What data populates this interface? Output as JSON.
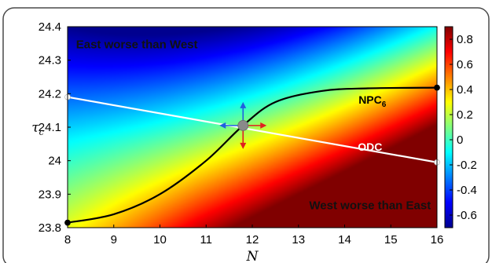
{
  "chart_data": {
    "type": "heatmap",
    "title": "",
    "xlabel": "N",
    "ylabel": "τc",
    "xlim": [
      8,
      16
    ],
    "ylim": [
      23.8,
      24.4
    ],
    "x_ticks": [
      "8",
      "9",
      "10",
      "11",
      "12",
      "13",
      "14",
      "15",
      "16"
    ],
    "y_ticks": [
      "23.8",
      "23.9",
      "24",
      "24.1",
      "24.2",
      "24.3",
      "24.4"
    ],
    "colorbar": {
      "range": [
        -0.7,
        0.9
      ],
      "ticks": [
        "0.8",
        "0.6",
        "0.4",
        "0.2",
        "0",
        "-0.2",
        "-0.4",
        "-0.6"
      ],
      "colormap": [
        "#00008f",
        "#0000ff",
        "#0080ff",
        "#00ffff",
        "#80ff80",
        "#ffff00",
        "#ff8000",
        "#ff0000",
        "#800000"
      ]
    },
    "region_labels": [
      {
        "text": "East worse than West",
        "x": 9.5,
        "y": 24.335
      },
      {
        "text": "West worse than East",
        "x": 14.55,
        "y": 23.855
      }
    ],
    "series": [
      {
        "name": "NPC",
        "subscript": "6",
        "color": "#000000",
        "label_at": {
          "x": 14.6,
          "y": 24.17
        },
        "points": [
          {
            "x": 8,
            "y": 23.815
          },
          {
            "x": 9,
            "y": 23.84
          },
          {
            "x": 10,
            "y": 23.9
          },
          {
            "x": 11,
            "y": 24.0
          },
          {
            "x": 11.8,
            "y": 24.105
          },
          {
            "x": 12.5,
            "y": 24.175
          },
          {
            "x": 13.5,
            "y": 24.208
          },
          {
            "x": 14.5,
            "y": 24.216
          },
          {
            "x": 16,
            "y": 24.218
          }
        ]
      },
      {
        "name": "ODC",
        "color": "#ffffff",
        "label_at": {
          "x": 14.55,
          "y": 24.03
        },
        "points": [
          {
            "x": 8,
            "y": 24.19
          },
          {
            "x": 16,
            "y": 23.995
          }
        ]
      }
    ],
    "intersection": {
      "x": 11.8,
      "y": 24.105
    },
    "arrows": [
      {
        "direction": "up",
        "color": "#2060e0"
      },
      {
        "direction": "left",
        "color": "#2060e0"
      },
      {
        "direction": "right",
        "color": "#e02020"
      },
      {
        "direction": "down",
        "color": "#e02020"
      }
    ]
  }
}
